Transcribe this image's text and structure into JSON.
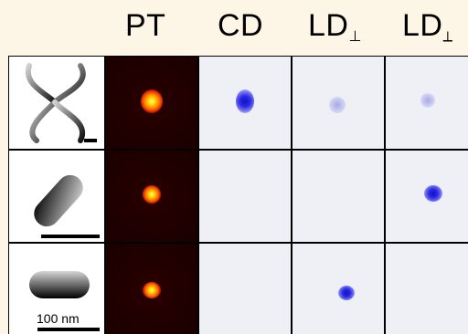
{
  "columns": {
    "pt": "PT",
    "cd": "CD",
    "ld_perp": {
      "base": "LD",
      "sub": "⊥"
    },
    "ld_diag": {
      "base": "LD",
      "sub": "⟂"
    }
  },
  "scale_label": "100 nm",
  "rows": [
    {
      "particle": "pinwheel-particle"
    },
    {
      "particle": "tilted-rod-particle"
    },
    {
      "particle": "horizontal-rod-particle"
    }
  ]
}
